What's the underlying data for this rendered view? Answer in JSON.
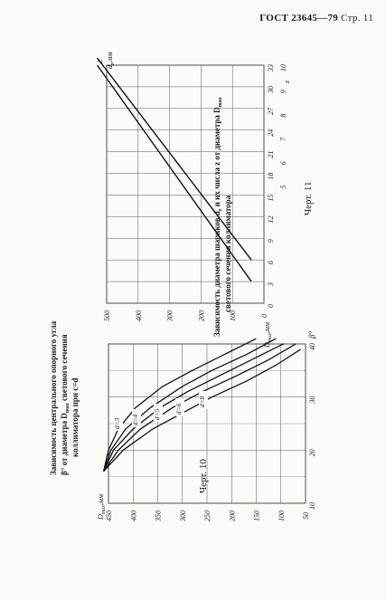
{
  "header": {
    "standard": "ГОСТ 23645—79",
    "page_label": "Стр. 11"
  },
  "chart_data": [
    {
      "id": "fig10",
      "type": "line",
      "caption": "Черт. 10",
      "title_lines": [
        "Зависимость центрального опорного угла",
        "β° от диаметра D",
        "max",
        " светового сечения",
        "коллиматора при c=d"
      ],
      "xlabel": "β°",
      "ylabel": "D",
      "ylabel_sub": "max",
      "ylabel_unit": ",мм",
      "xlim": [
        10,
        40
      ],
      "ylim": [
        50,
        450
      ],
      "x_ticks": [
        10,
        20,
        30,
        40
      ],
      "y_ticks": [
        50,
        100,
        150,
        200,
        250,
        300,
        350,
        400,
        450
      ],
      "series": [
        {
          "name": "d=3",
          "values": [
            [
              16,
              460
            ],
            [
              20,
              420
            ],
            [
              24,
              360
            ],
            [
              27,
              300
            ],
            [
              30,
              240
            ],
            [
              33,
              170
            ],
            [
              36,
              110
            ],
            [
              39,
              60
            ]
          ]
        },
        {
          "name": "d=4",
          "values": [
            [
              16,
              460
            ],
            [
              20,
              430
            ],
            [
              24,
              385
            ],
            [
              28,
              320
            ],
            [
              31,
              260
            ],
            [
              34,
              190
            ],
            [
              37,
              125
            ],
            [
              40,
              70
            ]
          ]
        },
        {
          "name": "d=5",
          "values": [
            [
              16,
              460
            ],
            [
              20,
              440
            ],
            [
              24,
              400
            ],
            [
              28,
              345
            ],
            [
              31,
              290
            ],
            [
              34,
              225
            ],
            [
              37,
              160
            ],
            [
              40,
              95
            ]
          ]
        },
        {
          "name": "d=6",
          "values": [
            [
              16,
              460
            ],
            [
              20,
              445
            ],
            [
              24,
              415
            ],
            [
              28,
              365
            ],
            [
              32,
              300
            ],
            [
              35,
              240
            ],
            [
              38,
              170
            ],
            [
              41,
              110
            ]
          ]
        },
        {
          "name": "d=8",
          "values": [
            [
              16,
              460
            ],
            [
              20,
              450
            ],
            [
              24,
              430
            ],
            [
              28,
              395
            ],
            [
              32,
              340
            ],
            [
              35,
              280
            ],
            [
              38,
              215
            ],
            [
              41,
              150
            ]
          ]
        }
      ],
      "labels": [
        "d=3",
        "d=4",
        "d=5",
        "d=6",
        "d=8"
      ]
    },
    {
      "id": "fig11",
      "type": "line",
      "caption": "Черт. 11",
      "title_lines": [
        "Зависимость диаметра шариков d",
        "z",
        " и их числа z от диаметра D",
        "max",
        "светового сечения коллиматора"
      ],
      "ylabel": "D",
      "ylabel_sub": "max",
      "ylabel_unit": ",мм",
      "xlabel_top": "d",
      "xlabel_top_sub": "z",
      "xlabel_top_unit": ",мм",
      "xlabel_bottom": "z",
      "ylim": [
        0,
        500
      ],
      "y_ticks": [
        0,
        100,
        200,
        300,
        400,
        500
      ],
      "dz_ticks": [
        0,
        3,
        6,
        9,
        12,
        15,
        18,
        21,
        24,
        27,
        30,
        33
      ],
      "dz_range": [
        0,
        33
      ],
      "z_ticks": [
        5,
        6,
        7,
        8,
        9,
        10
      ],
      "z_scale": 3.3,
      "series": [
        {
          "name": "d_z",
          "values": [
            [
              3,
              40
            ],
            [
              33,
              530
            ]
          ]
        },
        {
          "name": "z",
          "values": [
            [
              6,
              40
            ],
            [
              36,
              530
            ]
          ]
        }
      ],
      "line_label": "z"
    }
  ]
}
